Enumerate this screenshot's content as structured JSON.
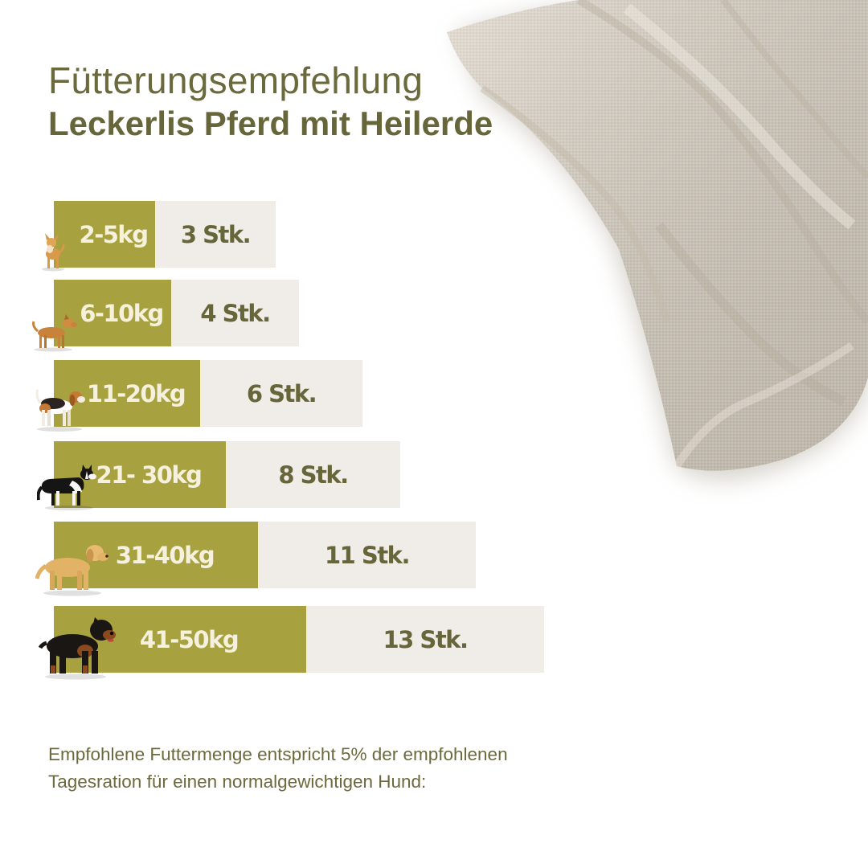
{
  "title_line1": "Fütterungsempfehlung",
  "title_line2": "Leckerlis Pferd mit Heilerde",
  "chart_data": {
    "type": "table",
    "rows": [
      {
        "weight": "2-5kg",
        "amount": "3 Stk.",
        "pieces": 3
      },
      {
        "weight": "6-10kg",
        "amount": "4 Stk.",
        "pieces": 4
      },
      {
        "weight": "11-20kg",
        "amount": "6 Stk.",
        "pieces": 6
      },
      {
        "weight": "21- 30kg",
        "amount": "8 Stk.",
        "pieces": 8
      },
      {
        "weight": "31-40kg",
        "amount": "11 Stk.",
        "pieces": 11
      },
      {
        "weight": "41-50kg",
        "amount": "13 Stk.",
        "pieces": 13
      }
    ]
  },
  "note": "Empfohlene Futtermenge entspricht 5% der empfohlenen Tagesration für einen normalgewichtigen Hund:",
  "colors": {
    "accent": "#a7a13f",
    "text": "#6b6a3c",
    "amount_bg": "#f0ece7",
    "linen": "#d8d0c3"
  },
  "icons": [
    "linen-cloth",
    "chihuahua-dog",
    "small-brown-dog",
    "beagle-dog",
    "border-collie-dog",
    "labrador-dog",
    "rottweiler-dog"
  ]
}
